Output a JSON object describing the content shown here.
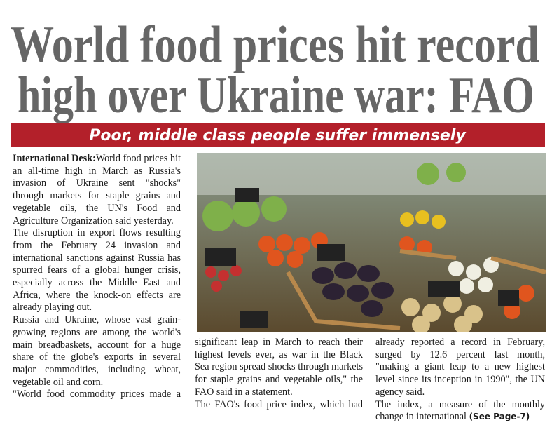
{
  "headline": {
    "lines": [
      "World food prices hit record",
      "high over Ukraine war: FAO"
    ]
  },
  "subheadline": "Poor, middle class people suffer immensely",
  "article": {
    "lead": "International Desk:",
    "column_1": [
      "World food prices hit an all-time high in March as Russia's invasion of Ukraine sent \"shocks\" through markets for staple grains and vegetable oils, the UN's Food and Agriculture Organization said yesterday.",
      "The disruption in export flows resulting from the February 24 invasion and international sanctions against Russia has spurred fears of a global hunger crisis, especially across the Middle East and Africa, where the knock-on effects are already playing out.",
      "Russia and Ukraine, whose vast grain-growing regions are among the world's main breadbaskets, account for a huge share of the globe's exports in several major commodities, including wheat, vegetable oil and corn.",
      "\"World food commodity prices made a"
    ],
    "column_2": [
      "significant leap in March to reach their highest levels ever, as war in the Black Sea region spread shocks through markets for staple grains and vegetable oils,\" the FAO said in a statement.",
      "The FAO's food price index, which had"
    ],
    "column_3": [
      "already reported a record in February, surged by 12.6 percent last month, \"making a giant leap to a new highest level since its inception in 1990\", the UN agency said.",
      "The index, a measure of the monthly change in international"
    ],
    "continuation": "(See Page-7)"
  }
}
